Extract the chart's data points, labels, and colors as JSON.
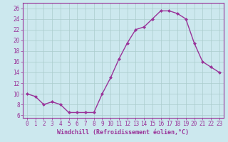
{
  "x": [
    0,
    1,
    2,
    3,
    4,
    5,
    6,
    7,
    8,
    9,
    10,
    11,
    12,
    13,
    14,
    15,
    16,
    17,
    18,
    19,
    20,
    21,
    22,
    23
  ],
  "y": [
    10,
    9.5,
    8,
    8.5,
    8,
    6.5,
    6.5,
    6.5,
    6.5,
    10,
    13,
    16.5,
    19.5,
    22,
    22.5,
    24,
    25.5,
    25.5,
    25,
    24,
    19.5,
    16,
    15,
    14
  ],
  "line_color": "#993399",
  "marker": "D",
  "marker_size": 2.0,
  "bg_color": "#cce8ee",
  "grid_color": "#aacccc",
  "xlabel": "Windchill (Refroidissement éolien,°C)",
  "xlabel_fontsize": 6.0,
  "tick_fontsize": 5.5,
  "xlim": [
    -0.5,
    23.5
  ],
  "ylim": [
    5.5,
    27
  ],
  "yticks": [
    6,
    8,
    10,
    12,
    14,
    16,
    18,
    20,
    22,
    24,
    26
  ],
  "xticks": [
    0,
    1,
    2,
    3,
    4,
    5,
    6,
    7,
    8,
    9,
    10,
    11,
    12,
    13,
    14,
    15,
    16,
    17,
    18,
    19,
    20,
    21,
    22,
    23
  ],
  "line_width": 1.0
}
